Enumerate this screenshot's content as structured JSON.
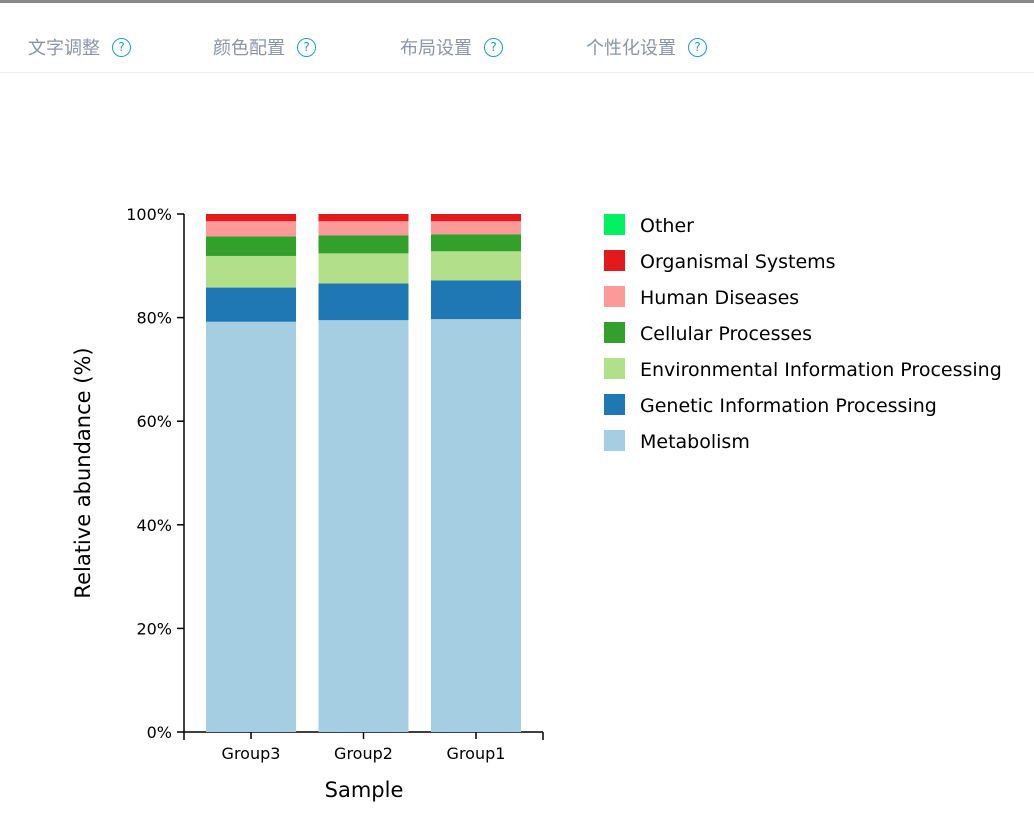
{
  "tabs": [
    {
      "label": "文字调整",
      "icon": "help-circle-icon",
      "help": "?"
    },
    {
      "label": "颜色配置",
      "icon": "help-circle-icon",
      "help": "?"
    },
    {
      "label": "布局设置",
      "icon": "help-circle-icon",
      "help": "?"
    },
    {
      "label": "个性化设置",
      "icon": "help-circle-icon",
      "help": "?"
    }
  ],
  "chart_data": {
    "type": "bar",
    "stacked": true,
    "xlabel": "Sample",
    "ylabel": "Relative abundance (%)",
    "ylim": [
      0,
      100
    ],
    "yticks": [
      "0%",
      "20%",
      "40%",
      "60%",
      "80%",
      "100%"
    ],
    "categories": [
      "Group3",
      "Group2",
      "Group1"
    ],
    "legend_position": "right",
    "series": [
      {
        "name": "Metabolism",
        "color": "#a6cee3",
        "values": [
          79.2,
          79.5,
          79.7
        ]
      },
      {
        "name": "Genetic Information Processing",
        "color": "#1f78b4",
        "values": [
          6.6,
          7.1,
          7.5
        ]
      },
      {
        "name": "Environmental Information Processing",
        "color": "#b2df8a",
        "values": [
          6.1,
          5.8,
          5.6
        ]
      },
      {
        "name": "Cellular Processes",
        "color": "#33a02c",
        "values": [
          3.8,
          3.5,
          3.3
        ]
      },
      {
        "name": "Human Diseases",
        "color": "#fb9a99",
        "values": [
          2.9,
          2.7,
          2.5
        ]
      },
      {
        "name": "Organismal Systems",
        "color": "#e31a1c",
        "values": [
          1.4,
          1.4,
          1.4
        ]
      },
      {
        "name": "Other",
        "color": "#00f060",
        "values": [
          0,
          0,
          0
        ]
      }
    ]
  }
}
